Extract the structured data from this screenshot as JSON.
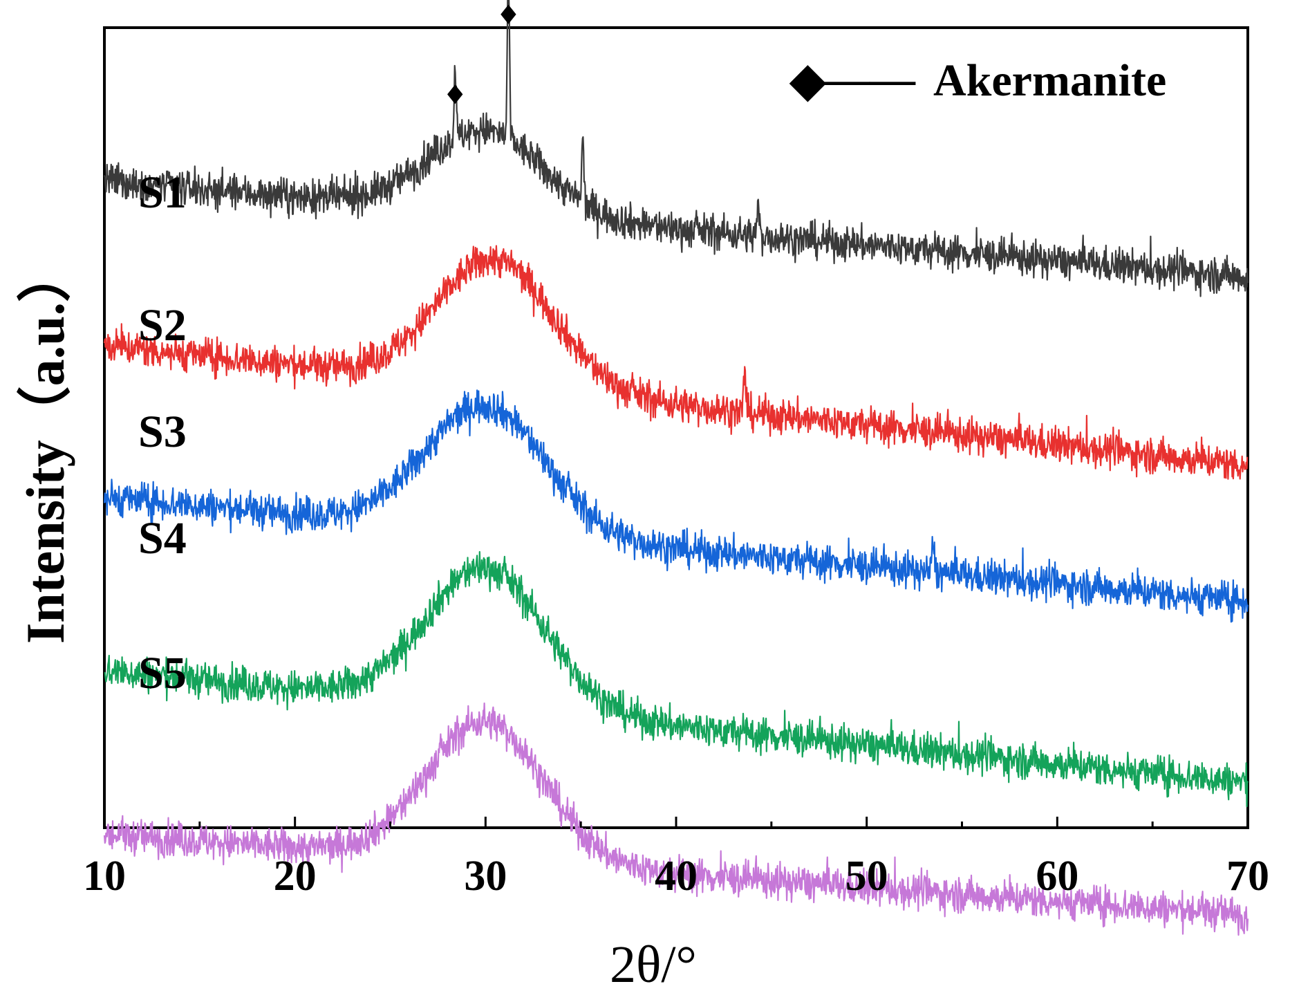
{
  "chart_data": {
    "type": "line",
    "title": "",
    "xlabel": "2θ/°",
    "ylabel": "Intensity（a.u.）",
    "xlim": [
      10,
      70
    ],
    "ylim": [
      0,
      6
    ],
    "x_ticks": [
      10,
      20,
      30,
      40,
      50,
      60,
      70
    ],
    "x_tick_labels": [
      "10",
      "20",
      "30",
      "40",
      "50",
      "60",
      "70"
    ],
    "y_ticks_shown": false,
    "grid": false,
    "legend": {
      "marker": "◆",
      "line": "——",
      "label": "Akermanite",
      "placement": "top-right"
    },
    "series": [
      {
        "name": "S1",
        "color": "#3a3a3a",
        "baseline": 4.85,
        "hump": {
          "center": 30.0,
          "width": 4.2,
          "height": 0.62
        },
        "noise": 0.13,
        "tail_slope": -0.0012,
        "peaks": [
          {
            "x": 28.4,
            "height": 0.55
          },
          {
            "x": 31.2,
            "height": 1.18
          },
          {
            "x": 35.1,
            "height": 0.45
          },
          {
            "x": 44.3,
            "height": 0.22
          }
        ]
      },
      {
        "name": "S2",
        "color": "#e8312f",
        "baseline": 3.62,
        "hump": {
          "center": 30.5,
          "width": 4.3,
          "height": 0.95
        },
        "noise": 0.13,
        "tail_slope": -0.0015,
        "peaks": [
          {
            "x": 43.6,
            "height": 0.3
          }
        ]
      },
      {
        "name": "S3",
        "color": "#1565d8",
        "baseline": 2.48,
        "hump": {
          "center": 30.0,
          "width": 4.4,
          "height": 0.95
        },
        "noise": 0.13,
        "tail_slope": -0.0013,
        "peaks": [
          {
            "x": 53.5,
            "height": 0.25
          }
        ]
      },
      {
        "name": "S4",
        "color": "#14a35a",
        "baseline": 1.18,
        "hump": {
          "center": 30.0,
          "width": 4.4,
          "height": 1.05
        },
        "noise": 0.13,
        "tail_slope": -0.0014,
        "peaks": []
      },
      {
        "name": "S5",
        "color": "#c678d8",
        "baseline": -0.05,
        "hump": {
          "center": 30.0,
          "width": 4.3,
          "height": 1.05
        },
        "noise": 0.13,
        "tail_slope": -0.001,
        "peaks": []
      }
    ],
    "annotations": [
      {
        "type": "marker",
        "symbol": "◆",
        "x": 28.4,
        "y": 5.5,
        "label": "Akermanite peak"
      },
      {
        "type": "marker",
        "symbol": "◆",
        "x": 31.2,
        "y": 6.1,
        "label": "Akermanite peak"
      }
    ]
  }
}
